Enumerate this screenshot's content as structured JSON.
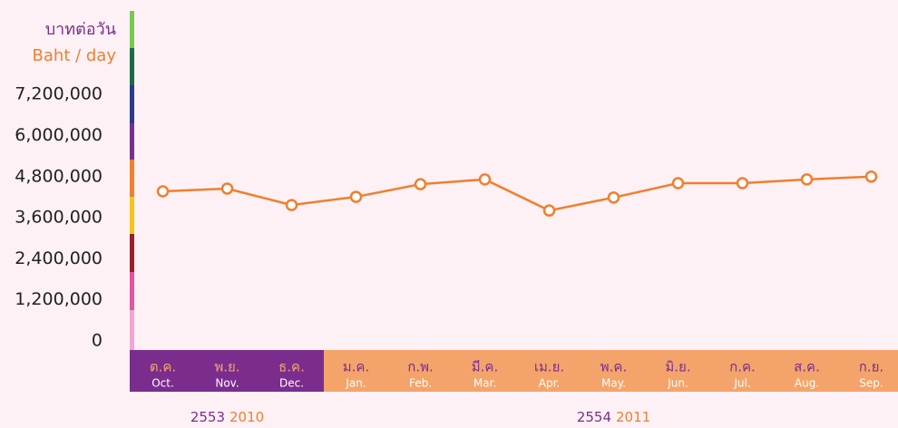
{
  "chart_data": {
    "type": "line",
    "y_unit_th": "บาทต่อวัน",
    "y_unit_en": "Baht / day",
    "categories_th": [
      "ต.ค.",
      "พ.ย.",
      "ธ.ค.",
      "ม.ค.",
      "ก.พ.",
      "มี.ค.",
      "เม.ย.",
      "พ.ค.",
      "มิ.ย.",
      "ก.ค.",
      "ส.ค.",
      "ก.ย."
    ],
    "categories": [
      "Oct.",
      "Nov.",
      "Dec.",
      "Jan.",
      "Feb.",
      "Mar.",
      "Apr.",
      "May.",
      "Jun.",
      "Jul.",
      "Aug.",
      "Sep."
    ],
    "groups": [
      {
        "label_th": "2553",
        "label_en": "2010"
      },
      {
        "label_th": "2554",
        "label_en": "2011"
      }
    ],
    "values": [
      4370000,
      4450000,
      3970000,
      4210000,
      4580000,
      4720000,
      3810000,
      4190000,
      4610000,
      4610000,
      4720000,
      4800000
    ],
    "color": "#f07f2e",
    "ylim": [
      0,
      9600000
    ],
    "yticks": [
      0,
      {
        "value": 1200000,
        "label": "1,200,000"
      },
      {
        "value": 2400000,
        "label": "2,400,000"
      },
      {
        "value": 3600000,
        "label": "3,600,000"
      },
      {
        "value": 4800000,
        "label": "4,800,000"
      },
      {
        "value": 6000000,
        "label": "6,000,000"
      },
      {
        "value": 7200000,
        "label": "7,200,000"
      }
    ],
    "grid": false
  }
}
